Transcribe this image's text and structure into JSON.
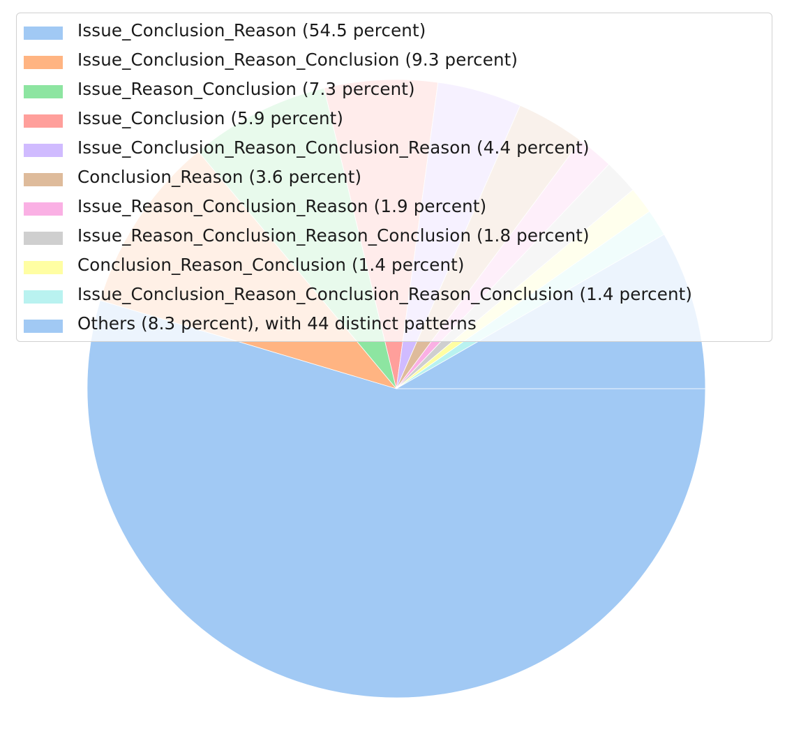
{
  "chart_data": {
    "type": "pie",
    "title": "",
    "start_angle_deg": 0,
    "direction": "clockwise",
    "legend_position": "top-left",
    "slices": [
      {
        "label": "Issue_Conclusion_Reason (54.5 percent)",
        "value": 54.5,
        "color": "#a1c9f4"
      },
      {
        "label": "Issue_Conclusion_Reason_Conclusion (9.3 percent)",
        "value": 9.3,
        "color": "#ffb482"
      },
      {
        "label": "Issue_Reason_Conclusion (7.3 percent)",
        "value": 7.3,
        "color": "#8de5a1"
      },
      {
        "label": "Issue_Conclusion (5.9 percent)",
        "value": 5.9,
        "color": "#ff9f9b"
      },
      {
        "label": "Issue_Conclusion_Reason_Conclusion_Reason (4.4 percent)",
        "value": 4.4,
        "color": "#d0bbff"
      },
      {
        "label": "Conclusion_Reason (3.6 percent)",
        "value": 3.6,
        "color": "#debb9b"
      },
      {
        "label": "Issue_Reason_Conclusion_Reason (1.9 percent)",
        "value": 1.9,
        "color": "#fab0e4"
      },
      {
        "label": "Issue_Reason_Conclusion_Reason_Conclusion (1.8 percent)",
        "value": 1.8,
        "color": "#cfcfcf"
      },
      {
        "label": "Conclusion_Reason_Conclusion (1.4 percent)",
        "value": 1.4,
        "color": "#fffea3"
      },
      {
        "label": "Issue_Conclusion_Reason_Conclusion_Reason_Conclusion (1.4 percent)",
        "value": 1.4,
        "color": "#b9f2f0"
      },
      {
        "label": "Others (8.3 percent), with 44 distinct patterns",
        "value": 8.3,
        "color": "#a1c9f4"
      }
    ]
  }
}
